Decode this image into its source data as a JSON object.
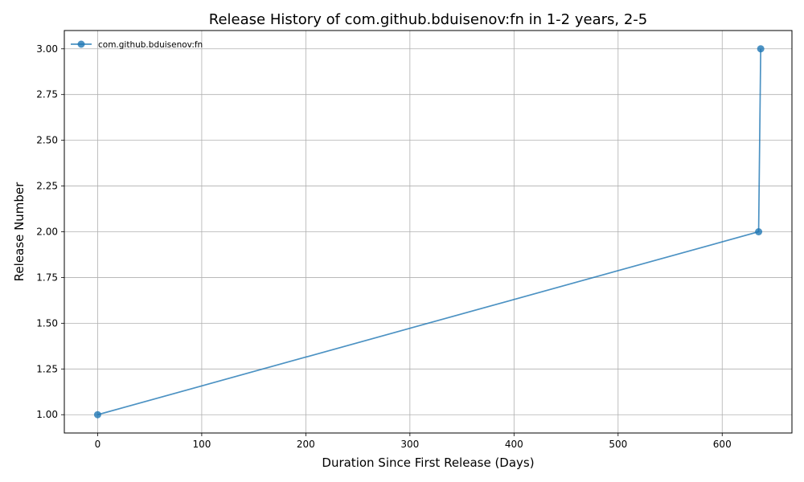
{
  "chart_data": {
    "type": "line",
    "title": "Release History of com.github.bduisenov:fn in 1-2 years, 2-5",
    "xlabel": "Duration Since First Release (Days)",
    "ylabel": "Release Number",
    "xlim": [
      -32,
      667
    ],
    "ylim": [
      0.9,
      3.1
    ],
    "xticks": [
      0,
      100,
      200,
      300,
      400,
      500,
      600
    ],
    "yticks": [
      1.0,
      1.25,
      1.5,
      1.75,
      2.0,
      2.25,
      2.5,
      2.75,
      3.0
    ],
    "ytick_labels": [
      "1.00",
      "1.25",
      "1.50",
      "1.75",
      "2.00",
      "2.25",
      "2.50",
      "2.75",
      "3.00"
    ],
    "grid": true,
    "legend_position": "top-left",
    "series": [
      {
        "name": "com.github.bduisenov:fn",
        "color": "#1f77b4",
        "marker": "circle",
        "x": [
          0,
          635,
          637
        ],
        "y": [
          1,
          2,
          3
        ]
      }
    ]
  }
}
